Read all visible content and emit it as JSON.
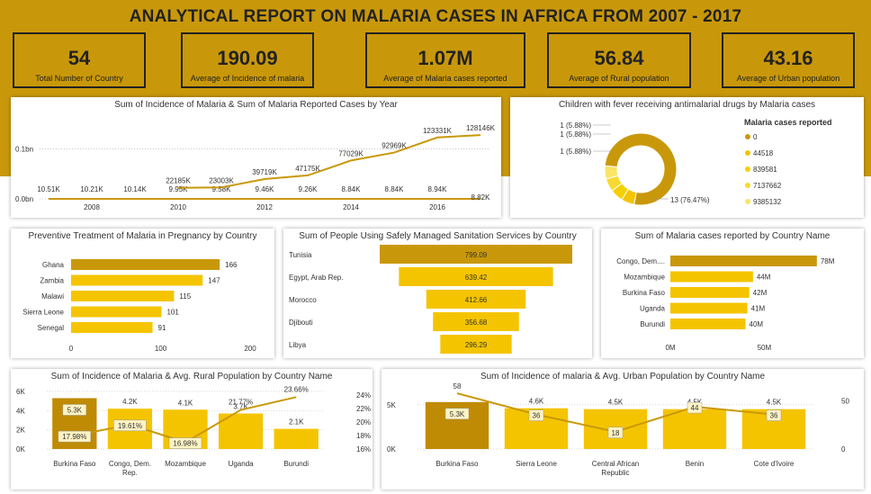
{
  "page_title": "ANALYTICAL REPORT ON MALARIA CASES IN AFRICA FROM 2007 -  2017",
  "kpis": [
    {
      "value": "54",
      "label": "Total Number of Country"
    },
    {
      "value": "190.09",
      "label": "Average of Incidence of malaria"
    },
    {
      "value": "1.07M",
      "label": "Average of Malaria cases reported"
    },
    {
      "value": "56.84",
      "label": "Average of Rural population"
    },
    {
      "value": "43.16",
      "label": "Average of Urban population"
    }
  ],
  "colors": {
    "gold": "#c9980a",
    "dark_gold": "#c08b04",
    "yellow": "#f5c400",
    "line": "#c9980a"
  },
  "chart_data": [
    {
      "id": "year_chart",
      "type": "line",
      "title": "Sum of Incidence of Malaria & Sum of Malaria Reported Cases by Year",
      "x": [
        2007,
        2008,
        2009,
        2010,
        2011,
        2012,
        2013,
        2014,
        2015,
        2016,
        2017
      ],
      "x_ticks": [
        "2008",
        "2010",
        "2012",
        "2014",
        "2016"
      ],
      "y_ticks": [
        "0.1bn",
        "0.0bn"
      ],
      "series": [
        {
          "values": [
            10510,
            10210,
            10140,
            9950,
            9580,
            9460,
            9260,
            8840,
            8840,
            8940,
            8820
          ],
          "labels": [
            "10.51K",
            "10.21K",
            "10.14K",
            "9.95K",
            "9.58K",
            "9.46K",
            "9.26K",
            "8.84K",
            "8.84K",
            "8.94K",
            "8.82K"
          ]
        },
        {
          "values": [
            null,
            null,
            null,
            22185000,
            23003000,
            39719000,
            47175000,
            77029000,
            92969000,
            123331000,
            128146000
          ],
          "labels": [
            "",
            "",
            "",
            "22185K",
            "23003K",
            "39719K",
            "47175K",
            "77029K",
            "92969K",
            "123331K",
            "128146K"
          ]
        }
      ],
      "ylim": [
        0,
        150000000
      ]
    },
    {
      "id": "donut_chart",
      "type": "pie",
      "title": "Children with fever receiving antimalarial drugs by Malaria cases",
      "legend_title": "Malaria cases reported",
      "legend": [
        "0",
        "44518",
        "839581",
        "7137662",
        "9385132"
      ],
      "values": [
        13,
        1,
        1,
        1,
        1
      ],
      "slice_labels": [
        "13 (76.47%)",
        "1 (5.88%)",
        "1 (5.88%)",
        "1 (5.88%)",
        "1 (5.88%)"
      ]
    },
    {
      "id": "pregnancy_chart",
      "type": "bar",
      "title": "Preventive Treatment of Malaria in Pregnancy by Country",
      "categories": [
        "Ghana",
        "Zambia",
        "Malawi",
        "Sierra Leone",
        "Senegal"
      ],
      "values": [
        166,
        147,
        115,
        101,
        91
      ],
      "x_ticks": [
        "0",
        "100",
        "200"
      ],
      "xlim": [
        0,
        200
      ]
    },
    {
      "id": "sanitation_chart",
      "type": "bar",
      "title": "Sum of People Using Safely Managed Sanitation Services by Country",
      "categories": [
        "Tunisia",
        "Egypt, Arab Rep.",
        "Morocco",
        "Djibouti",
        "Libya"
      ],
      "values": [
        799.09,
        639.42,
        412.66,
        356.68,
        296.29
      ],
      "labels": [
        "799.09",
        "639.42",
        "412.66",
        "356.68",
        "296.29"
      ]
    },
    {
      "id": "cases_country_chart",
      "type": "bar",
      "title": "Sum of Malaria cases reported by Country Name",
      "categories": [
        "Congo, Dem....",
        "Mozambique",
        "Burkina Faso",
        "Uganda",
        "Burundi"
      ],
      "values": [
        78,
        44,
        42,
        41,
        40
      ],
      "labels": [
        "78M",
        "44M",
        "42M",
        "41M",
        "40M"
      ],
      "x_ticks": [
        "0M",
        "50M"
      ],
      "xlim": [
        0,
        80
      ]
    },
    {
      "id": "rural_chart",
      "type": "bar",
      "title": "Sum of Incidence of Malaria & Avg. Rural Population by Country Name",
      "categories": [
        "Burkina Faso",
        "Congo, Dem.\nRep.",
        "Mozambique",
        "Uganda",
        "Burundi"
      ],
      "values": [
        5300,
        4200,
        4100,
        3700,
        2100
      ],
      "labels": [
        "5.3K",
        "4.2K",
        "4.1K",
        "3.7K",
        "2.1K"
      ],
      "line_values": [
        17.98,
        19.61,
        16.98,
        21.77,
        23.66
      ],
      "line_labels": [
        "17.98%",
        "19.61%",
        "16.98%",
        "21.77%",
        "23.66%"
      ],
      "y_ticks": [
        "6K",
        "4K",
        "2K",
        "0K"
      ],
      "y2_ticks": [
        "24%",
        "22%",
        "20%",
        "18%",
        "16%"
      ],
      "ylim": [
        0,
        6000
      ],
      "y2lim": [
        16,
        24.5
      ]
    },
    {
      "id": "urban_chart",
      "type": "bar",
      "title": "Sum of Incidence of malaria & Avg. Urban Population by Country Name",
      "categories": [
        "Burkina Faso",
        "Sierra Leone",
        "Central African\nRepublic",
        "Benin",
        "Cote d'Ivoire"
      ],
      "values": [
        5300,
        4600,
        4500,
        4500,
        4500
      ],
      "labels": [
        "5.3K",
        "4.6K",
        "4.5K",
        "4.5K",
        "4.5K"
      ],
      "line_values": [
        58,
        36,
        18,
        44,
        36
      ],
      "line_labels": [
        "58",
        "36",
        "18",
        "44",
        "36"
      ],
      "y_ticks": [
        "5K",
        "0K"
      ],
      "y2_ticks": [
        "50",
        "0"
      ],
      "ylim": [
        0,
        6500
      ],
      "y2lim": [
        0,
        60
      ]
    }
  ]
}
